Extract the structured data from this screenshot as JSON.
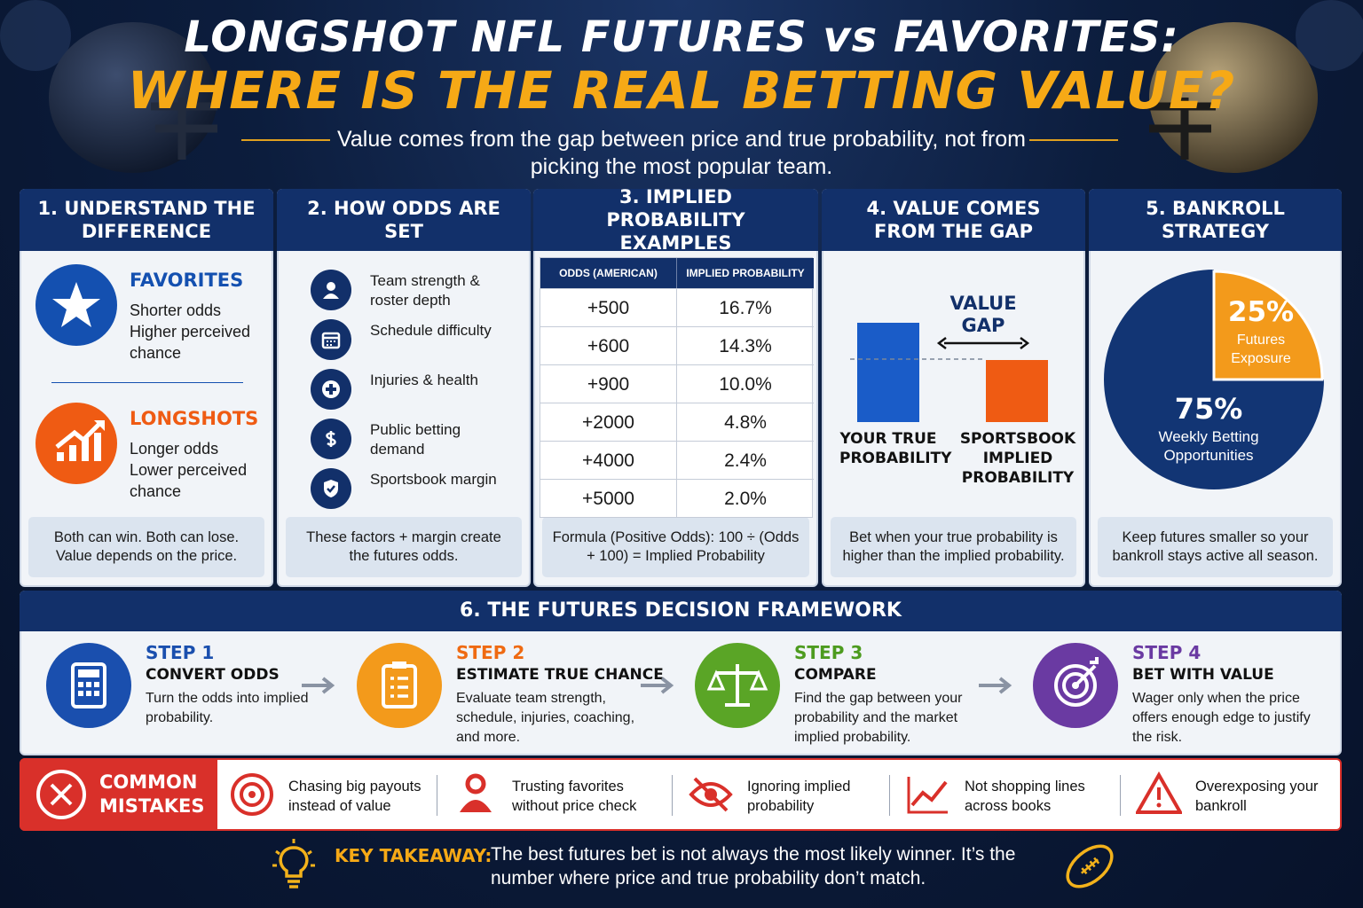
{
  "header": {
    "title_line1": "LONGSHOT NFL FUTURES vs FAVORITES:",
    "title_line2": "WHERE IS THE REAL BETTING VALUE?",
    "subtitle": "Value comes from the gap between price and true probability, not from picking the most popular team."
  },
  "difference": {
    "title": "1. UNDERSTAND THE DIFFERENCE",
    "groups": [
      {
        "heading": "FAVORITES",
        "items": [
          "Shorter odds",
          "Higher perceived chance"
        ]
      },
      {
        "heading": "LONGSHOTS",
        "items": [
          "Longer odds",
          "Lower perceived chance"
        ]
      }
    ],
    "note": "Both can win. Both can lose. Value depends on the price."
  },
  "odds_setting": {
    "title": "2. HOW ODDS ARE SET",
    "items": [
      "Team strength & roster depth",
      "Schedule difficulty",
      "Injuries & health",
      "Public betting demand",
      "Sportsbook margin"
    ],
    "note": "These factors + margin create the futures odds."
  },
  "implied": {
    "title": "3. IMPLIED PROBABILITY EXAMPLES",
    "columns": [
      "ODDS (AMERICAN)",
      "IMPLIED PROBABILITY"
    ],
    "rows": [
      [
        "+500",
        "16.7%"
      ],
      [
        "+600",
        "14.3%"
      ],
      [
        "+900",
        "10.0%"
      ],
      [
        "+2000",
        "4.8%"
      ],
      [
        "+4000",
        "2.4%"
      ],
      [
        "+5000",
        "2.0%"
      ]
    ],
    "note": "Formula (Positive Odds): 100 ÷ (Odds + 100) = Implied Probability"
  },
  "value_gap": {
    "title": "4. VALUE COMES FROM THE GAP",
    "gap_label": "VALUE GAP",
    "bars": [
      "YOUR TRUE PROBABILITY",
      "SPORTSBOOK IMPLIED PROBABILITY"
    ],
    "note": "Bet when your true probability is higher than the implied probability."
  },
  "bankroll": {
    "title": "5. BANKROLL STRATEGY",
    "slices": [
      {
        "value": 25,
        "label": "25%",
        "name": "Futures Exposure",
        "color": "#f39a1b"
      },
      {
        "value": 75,
        "label": "75%",
        "name": "Weekly Betting Opportunities",
        "color": "#123574"
      }
    ],
    "note": "Keep futures smaller so your bankroll stays active all season."
  },
  "framework": {
    "title": "6. THE FUTURES DECISION FRAMEWORK",
    "steps": [
      {
        "step": "STEP 1",
        "heading": "CONVERT ODDS",
        "text": "Turn the odds into implied probability."
      },
      {
        "step": "STEP 2",
        "heading": "ESTIMATE TRUE CHANCE",
        "text": "Evaluate team strength, schedule, injuries, coaching, and more."
      },
      {
        "step": "STEP 3",
        "heading": "COMPARE",
        "text": "Find the gap between your probability and the market implied probability."
      },
      {
        "step": "STEP 4",
        "heading": "BET WITH VALUE",
        "text": "Wager only when the price offers enough edge to justify the risk."
      }
    ]
  },
  "mistakes": {
    "label": "COMMON MISTAKES",
    "items": [
      "Chasing big payouts instead of value",
      "Trusting favorites without price check",
      "Ignoring implied probability",
      "Not shopping lines across books",
      "Overexposing your bankroll"
    ]
  },
  "takeaway": {
    "label": "KEY TAKEAWAY:",
    "text": "The best futures bet is not always the most likely winner. It’s the number where price and true probability don’t match."
  }
}
